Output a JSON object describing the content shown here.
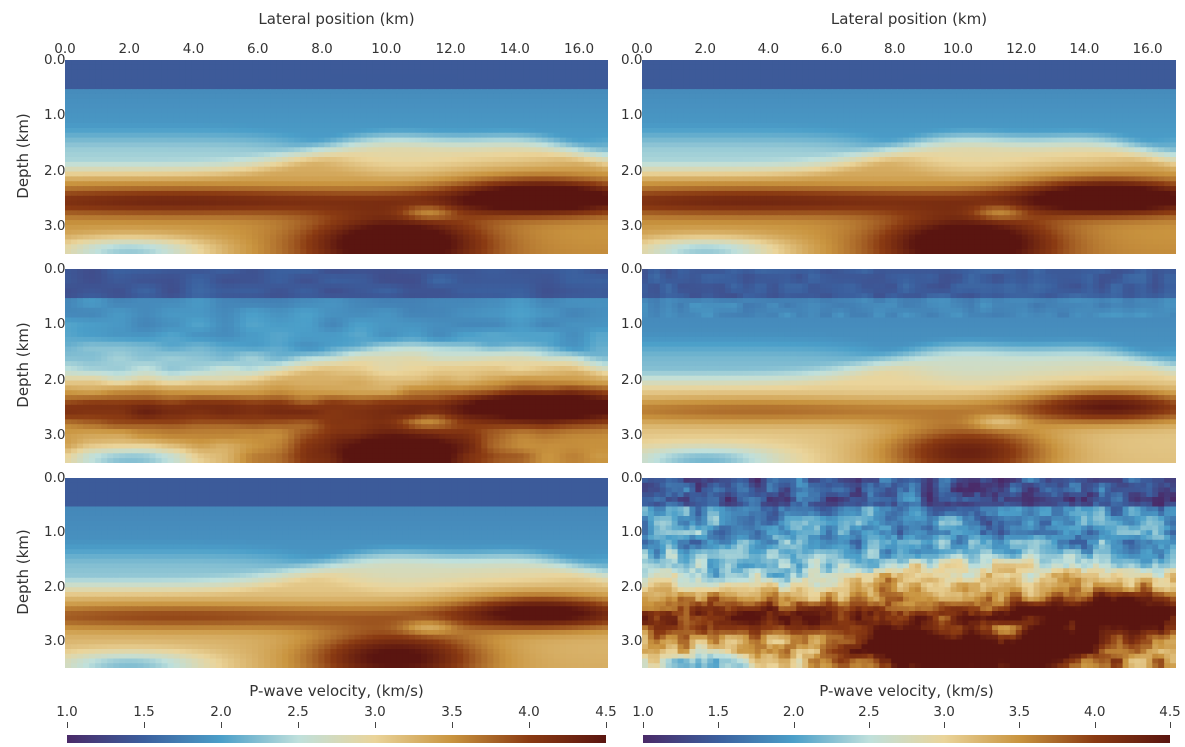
{
  "chart_data": {
    "type": "heatmap",
    "xlabel": "Lateral position (km)",
    "ylabel": "Depth (km)",
    "x_ticks": [
      "0.0",
      "2.0",
      "4.0",
      "6.0",
      "8.0",
      "10.0",
      "12.0",
      "14.0",
      "16.0"
    ],
    "x_tick_values": [
      0,
      2,
      4,
      6,
      8,
      10,
      12,
      14,
      16
    ],
    "xlim": [
      0,
      16.9
    ],
    "y_ticks": [
      "0.0",
      "1.0",
      "2.0",
      "3.0"
    ],
    "y_tick_values": [
      0,
      1,
      2,
      3
    ],
    "ylim": [
      0,
      3.5
    ],
    "colorbar": {
      "label": "P-wave velocity, (km/s)",
      "ticks": [
        "1.0",
        "1.5",
        "2.0",
        "2.5",
        "3.0",
        "3.5",
        "4.0",
        "4.5"
      ],
      "tick_values": [
        1.0,
        1.5,
        2.0,
        2.5,
        3.0,
        3.5,
        4.0,
        4.5
      ],
      "range": [
        1.0,
        4.5
      ],
      "colors": [
        "#4a2a68",
        "#3b5f9e",
        "#4b9fc9",
        "#bfe0dc",
        "#ead49a",
        "#c9943f",
        "#8a3a12",
        "#5a1510"
      ]
    },
    "panels": [
      {
        "row": 0,
        "col": 0,
        "variant": "true_model"
      },
      {
        "row": 0,
        "col": 1,
        "variant": "true_model"
      },
      {
        "row": 1,
        "col": 0,
        "variant": "smooth_detail"
      },
      {
        "row": 1,
        "col": 1,
        "variant": "smooth_blur"
      },
      {
        "row": 2,
        "col": 0,
        "variant": "very_smooth"
      },
      {
        "row": 2,
        "col": 1,
        "variant": "noisy"
      }
    ]
  }
}
